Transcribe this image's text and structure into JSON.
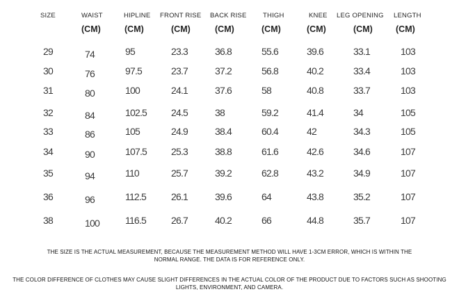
{
  "columns": [
    {
      "label": "SIZE",
      "unit": ""
    },
    {
      "label": "WAIST",
      "unit": "(CM)"
    },
    {
      "label": "HIPLINE",
      "unit": "(CM)"
    },
    {
      "label": "FRONT RISE",
      "unit": "(CM)"
    },
    {
      "label": "BACK RISE",
      "unit": "(CM)"
    },
    {
      "label": "THIGH",
      "unit": "(CM)"
    },
    {
      "label": "KNEE",
      "unit": "(CM)"
    },
    {
      "label": "LEG OPENING",
      "unit": "(CM)"
    },
    {
      "label": "LENGTH",
      "unit": "(CM)"
    }
  ],
  "rows": [
    [
      "29",
      "74",
      "95",
      "23.3",
      "36.8",
      "55.6",
      "39.6",
      "33.1",
      "103"
    ],
    [
      "30",
      "76",
      "97.5",
      "23.7",
      "37.2",
      "56.8",
      "40.2",
      "33.4",
      "103"
    ],
    [
      "31",
      "80",
      "100",
      "24.1",
      "37.6",
      "58",
      "40.8",
      "33.7",
      "103"
    ],
    [
      "32",
      "84",
      "102.5",
      "24.5",
      "38",
      "59.2",
      "41.4",
      "34",
      "105"
    ],
    [
      "33",
      "86",
      "105",
      "24.9",
      "38.4",
      "60.4",
      "42",
      "34.3",
      "105"
    ],
    [
      "34",
      "90",
      "107.5",
      "25.3",
      "38.8",
      "61.6",
      "42.6",
      "34.6",
      "107"
    ],
    [
      "35",
      "94",
      "110",
      "25.7",
      "39.2",
      "62.8",
      "43.2",
      "34.9",
      "107"
    ],
    [
      "36",
      "96",
      "112.5",
      "26.1",
      "39.6",
      "64",
      "43.8",
      "35.2",
      "107"
    ],
    [
      "38",
      "100",
      "116.5",
      "26.7",
      "40.2",
      "66",
      "44.8",
      "35.7",
      "107"
    ]
  ],
  "notes": {
    "measurement": "THE SIZE IS THE ACTUAL MEASUREMENT, BECAUSE THE MEASUREMENT METHOD WILL HAVE 1-3CM ERROR, WHICH IS WITHIN THE NORMAL RANGE. THE DATA IS FOR REFERENCE ONLY.",
    "color": "THE COLOR DIFFERENCE OF CLOTHES MAY CAUSE SLIGHT DIFFERENCES IN THE ACTUAL COLOR OF THE PRODUCT DUE TO FACTORS SUCH AS SHOOTING LIGHTS, ENVIRONMENT, AND CAMERA."
  }
}
